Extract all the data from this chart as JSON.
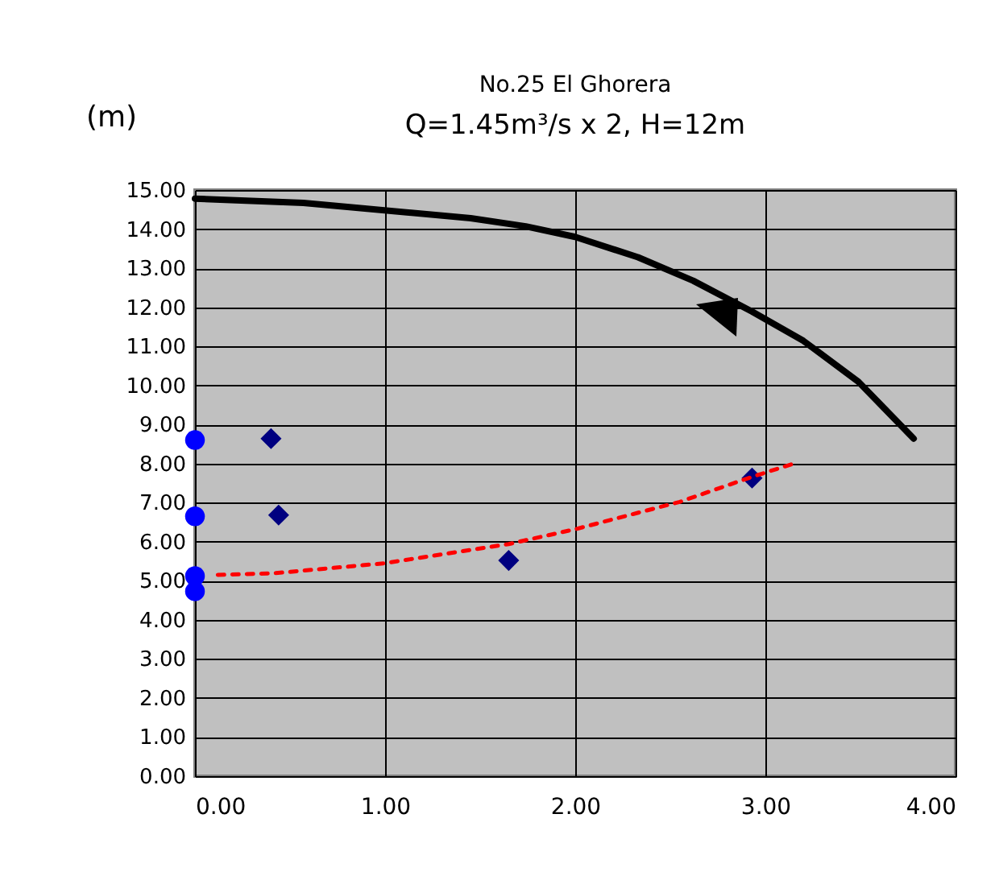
{
  "chart_data": {
    "type": "line",
    "title": "No.25 El Ghorera",
    "subtitle": "Q=1.45m³/s x 2, H=12m",
    "ylabel": "(m)",
    "xlim": [
      0,
      4
    ],
    "xticks": [
      {
        "value": 0,
        "label": "0.00"
      },
      {
        "value": 1,
        "label": "1.00"
      },
      {
        "value": 2,
        "label": "2.00"
      },
      {
        "value": 3,
        "label": "3.00"
      },
      {
        "value": 4,
        "label": "4.00"
      }
    ],
    "ylim": [
      0,
      15
    ],
    "yticks": [
      {
        "value": 0,
        "label": "0.00"
      },
      {
        "value": 1,
        "label": "1.00"
      },
      {
        "value": 2,
        "label": "2.00"
      },
      {
        "value": 3,
        "label": "3.00"
      },
      {
        "value": 4,
        "label": "4.00"
      },
      {
        "value": 5,
        "label": "5.00"
      },
      {
        "value": 6,
        "label": "6.00"
      },
      {
        "value": 7,
        "label": "7.00"
      },
      {
        "value": 8,
        "label": "8.00"
      },
      {
        "value": 9,
        "label": "9.00"
      },
      {
        "value": 10,
        "label": "10.00"
      },
      {
        "value": 11,
        "label": "11.00"
      },
      {
        "value": 12,
        "label": "12.00"
      },
      {
        "value": 13,
        "label": "13.00"
      },
      {
        "value": 14,
        "label": "14.00"
      },
      {
        "value": 15,
        "label": "15.00"
      }
    ],
    "grid": true,
    "series": [
      {
        "color": "#000000",
        "marker": "none",
        "line_style": "solid",
        "x": [
          0,
          0.57,
          1.45,
          1.74,
          2.0,
          2.33,
          2.62,
          2.93,
          3.2,
          3.49,
          3.78
        ],
        "values": [
          14.78,
          14.67,
          14.28,
          14.07,
          13.8,
          13.28,
          12.68,
          11.89,
          11.14,
          10.09,
          8.64
        ]
      },
      {
        "type": "scatter",
        "color": "#0000ff",
        "marker": "circle",
        "x": [
          0,
          0,
          0,
          0
        ],
        "values": [
          8.6,
          6.65,
          5.12,
          4.73
        ]
      },
      {
        "type": "scatter",
        "color": "#000080",
        "marker": "diamond",
        "x": [
          0.4,
          0.44,
          1.65,
          2.93
        ],
        "values": [
          8.64,
          6.68,
          5.52,
          7.63
        ]
      },
      {
        "color": "#ff0000",
        "marker": "none",
        "line_style": "dashed",
        "x": [
          0.12,
          0.41,
          1.0,
          1.65,
          2.0,
          2.55,
          2.93,
          3.15
        ],
        "values": [
          5.15,
          5.19,
          5.45,
          5.94,
          6.32,
          7.02,
          7.66,
          8.0
        ]
      }
    ]
  }
}
